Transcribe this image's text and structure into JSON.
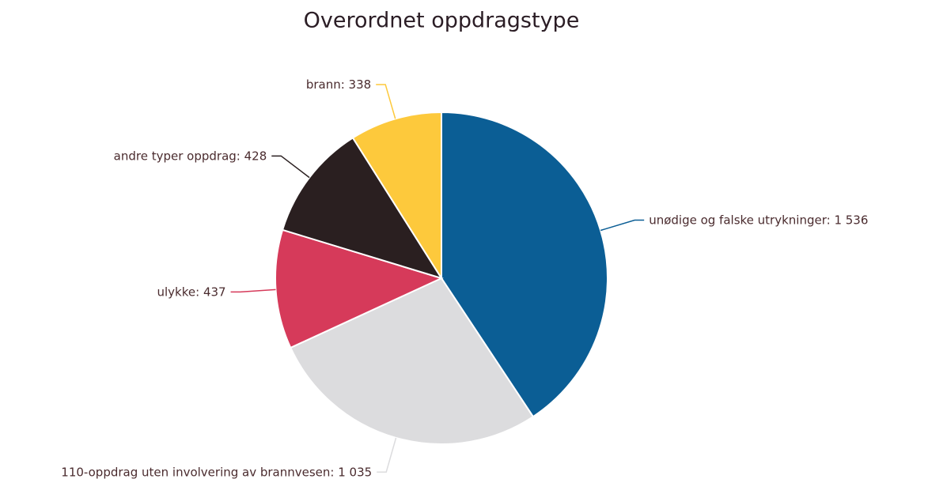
{
  "chart_data": {
    "type": "pie",
    "title": "Overordnet oppdragstype",
    "categories": [
      "unødige og falske utrykninger",
      "110-oppdrag uten involvering av brannvesen",
      "ulykke",
      "andre typer oppdrag",
      "brann"
    ],
    "label_separator": ": ",
    "values": [
      1536,
      1035,
      437,
      428,
      338
    ],
    "value_labels": [
      "1 536",
      "1 035",
      "437",
      "428",
      "338"
    ],
    "colors": [
      "#0b5e95",
      "#dcdcde",
      "#d63a5a",
      "#2a1f20",
      "#fdc93c"
    ]
  }
}
